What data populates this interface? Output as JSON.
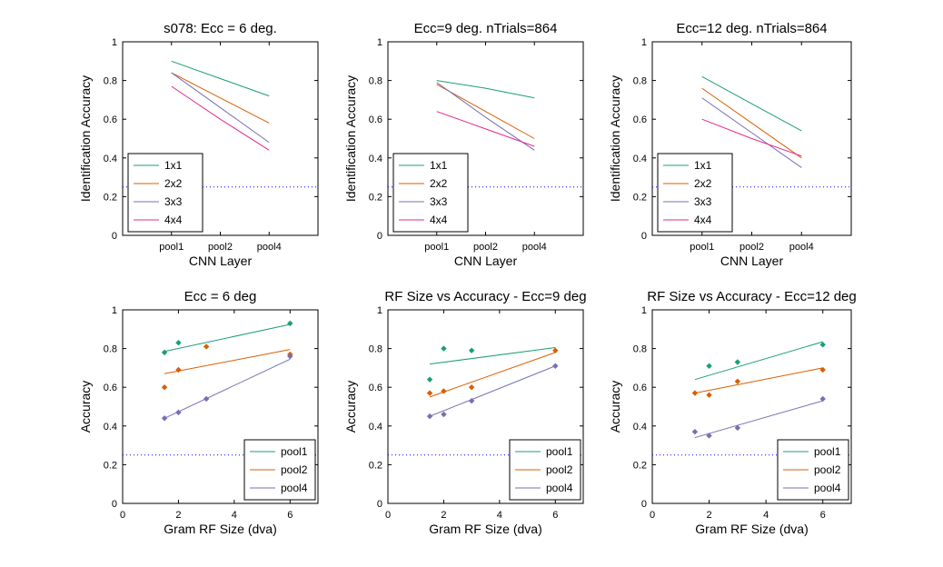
{
  "colors": {
    "pool1": "#1b9e77",
    "pool2": "#d95f02",
    "pool4": "#7570b3",
    "4x4": "#e7298a",
    "chance": "#0000ff"
  },
  "chart_data": [
    {
      "type": "line",
      "title": "s078: Ecc = 6 deg.",
      "xlabel": "CNN Layer",
      "ylabel": "Identification Accuracy",
      "categories": [
        "pool1",
        "pool2",
        "pool4"
      ],
      "xlim": [
        0,
        4
      ],
      "ylim": [
        0,
        1
      ],
      "x": [
        1,
        2,
        3
      ],
      "yticks": [
        "0",
        "0.2",
        "0.4",
        "0.6",
        "0.8",
        "1"
      ],
      "chance": 0.25,
      "legend_loc": "bottom-left",
      "series": [
        {
          "name": "1x1",
          "color": "#1b9e77",
          "values": [
            0.9,
            0.81,
            0.72
          ]
        },
        {
          "name": "2x2",
          "color": "#d95f02",
          "values": [
            0.84,
            0.71,
            0.58
          ]
        },
        {
          "name": "3x3",
          "color": "#7570b3",
          "values": [
            0.84,
            0.66,
            0.48
          ]
        },
        {
          "name": "4x4",
          "color": "#e7298a",
          "values": [
            0.77,
            0.6,
            0.44
          ]
        }
      ]
    },
    {
      "type": "line",
      "title": "Ecc=9 deg. nTrials=864",
      "xlabel": "CNN Layer",
      "ylabel": "Identification Accuracy",
      "categories": [
        "pool1",
        "pool2",
        "pool4"
      ],
      "xlim": [
        0,
        4
      ],
      "ylim": [
        0,
        1
      ],
      "x": [
        1,
        2,
        3
      ],
      "yticks": [
        "0",
        "0.2",
        "0.4",
        "0.6",
        "0.8",
        "1"
      ],
      "chance": 0.25,
      "legend_loc": "bottom-left",
      "series": [
        {
          "name": "1x1",
          "color": "#1b9e77",
          "values": [
            0.8,
            0.76,
            0.71
          ]
        },
        {
          "name": "2x2",
          "color": "#d95f02",
          "values": [
            0.78,
            0.64,
            0.5
          ]
        },
        {
          "name": "3x3",
          "color": "#7570b3",
          "values": [
            0.79,
            0.61,
            0.44
          ]
        },
        {
          "name": "4x4",
          "color": "#e7298a",
          "values": [
            0.64,
            0.55,
            0.46
          ]
        }
      ]
    },
    {
      "type": "line",
      "title": "Ecc=12 deg. nTrials=864",
      "xlabel": "CNN Layer",
      "ylabel": "Identification Accuracy",
      "categories": [
        "pool1",
        "pool2",
        "pool4"
      ],
      "xlim": [
        0,
        4
      ],
      "ylim": [
        0,
        1
      ],
      "x": [
        1,
        2,
        3
      ],
      "yticks": [
        "0",
        "0.2",
        "0.4",
        "0.6",
        "0.8",
        "1"
      ],
      "chance": 0.25,
      "legend_loc": "bottom-left",
      "series": [
        {
          "name": "1x1",
          "color": "#1b9e77",
          "values": [
            0.82,
            0.68,
            0.54
          ]
        },
        {
          "name": "2x2",
          "color": "#d95f02",
          "values": [
            0.76,
            0.58,
            0.4
          ]
        },
        {
          "name": "3x3",
          "color": "#7570b3",
          "values": [
            0.71,
            0.53,
            0.35
          ]
        },
        {
          "name": "4x4",
          "color": "#e7298a",
          "values": [
            0.6,
            0.5,
            0.41
          ]
        }
      ]
    },
    {
      "type": "scatter",
      "title": "Ecc = 6 deg",
      "xlabel": "Gram RF Size (dva)",
      "ylabel": "Accuracy",
      "xlim": [
        0,
        7
      ],
      "ylim": [
        0,
        1
      ],
      "xticks": [
        "0",
        "2",
        "4",
        "6"
      ],
      "yticks": [
        "0",
        "0.2",
        "0.4",
        "0.6",
        "0.8",
        "1"
      ],
      "chance": 0.25,
      "legend_loc": "bottom-right",
      "x": [
        1.5,
        2,
        3,
        6
      ],
      "series": [
        {
          "name": "pool1",
          "color": "#1b9e77",
          "values": [
            0.78,
            0.83,
            null,
            0.93
          ],
          "fit": [
            0.785,
            0.925
          ]
        },
        {
          "name": "pool2",
          "color": "#d95f02",
          "values": [
            0.6,
            0.69,
            0.81,
            0.77
          ],
          "fit": [
            0.67,
            0.795
          ]
        },
        {
          "name": "pool4",
          "color": "#7570b3",
          "values": [
            0.44,
            0.47,
            0.54,
            0.76
          ],
          "fit": [
            0.44,
            0.745
          ]
        }
      ]
    },
    {
      "type": "scatter",
      "title": "RF Size vs Accuracy - Ecc=9 deg",
      "xlabel": "Gram RF Size (dva)",
      "ylabel": "Accuracy",
      "xlim": [
        0,
        7
      ],
      "ylim": [
        0,
        1
      ],
      "xticks": [
        "0",
        "2",
        "4",
        "6"
      ],
      "yticks": [
        "0",
        "0.2",
        "0.4",
        "0.6",
        "0.8",
        "1"
      ],
      "chance": 0.25,
      "legend_loc": "bottom-right",
      "x": [
        1.5,
        2,
        3,
        6
      ],
      "series": [
        {
          "name": "pool1",
          "color": "#1b9e77",
          "values": [
            0.64,
            0.8,
            0.79,
            null
          ],
          "fit": [
            0.72,
            0.805
          ]
        },
        {
          "name": "pool2",
          "color": "#d95f02",
          "values": [
            0.57,
            0.58,
            0.6,
            0.79
          ],
          "fit": [
            0.55,
            0.78
          ]
        },
        {
          "name": "pool4",
          "color": "#7570b3",
          "values": [
            0.45,
            0.46,
            0.53,
            0.71
          ],
          "fit": [
            0.45,
            0.71
          ]
        }
      ]
    },
    {
      "type": "scatter",
      "title": "RF Size vs Accuracy - Ecc=12 deg",
      "xlabel": "Gram RF Size (dva)",
      "ylabel": "Accuracy",
      "xlim": [
        0,
        7
      ],
      "ylim": [
        0,
        1
      ],
      "xticks": [
        "0",
        "2",
        "4",
        "6"
      ],
      "yticks": [
        "0",
        "0.2",
        "0.4",
        "0.6",
        "0.8",
        "1"
      ],
      "chance": 0.25,
      "legend_loc": "bottom-right",
      "x": [
        1.5,
        2,
        3,
        6
      ],
      "series": [
        {
          "name": "pool1",
          "color": "#1b9e77",
          "values": [
            null,
            0.71,
            0.73,
            0.82
          ],
          "fit": [
            0.64,
            0.835
          ]
        },
        {
          "name": "pool2",
          "color": "#d95f02",
          "values": [
            0.57,
            0.56,
            0.63,
            0.69
          ],
          "fit": [
            0.57,
            0.7
          ]
        },
        {
          "name": "pool4",
          "color": "#7570b3",
          "values": [
            0.37,
            0.35,
            0.39,
            0.54
          ],
          "fit": [
            0.34,
            0.53
          ]
        }
      ]
    }
  ]
}
